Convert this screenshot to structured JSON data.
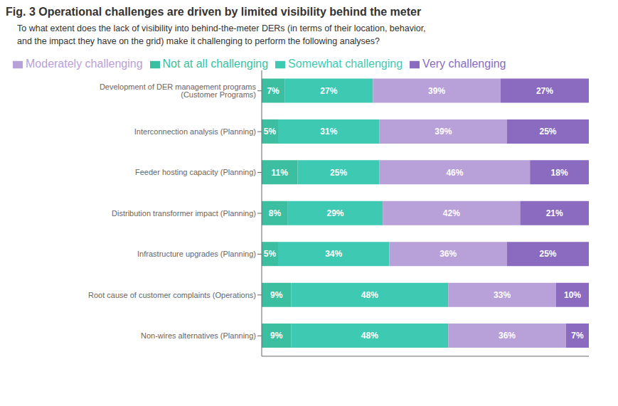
{
  "chart_data": {
    "type": "bar",
    "orientation": "horizontal",
    "stacked": true,
    "title": "Fig. 3  Operational challenges are driven by limited visibility behind the meter",
    "subtitle": "To what extent does the lack of visibility into behind-the-meter DERs (in terms of their location, behavior,\nand the impact they have on the grid) make it challenging to perform the following analyses?",
    "categories": [
      "Development of DER management programs (Customer Programs)",
      "Interconnection analysis (Planning)",
      "Feeder hosting capacity (Planning)",
      "Distribution transformer impact (Planning)",
      "Infrastructure upgrades (Planning)",
      "Root cause of customer complaints (Operations)",
      "Non-wires alternatives (Planning)"
    ],
    "series": [
      {
        "name": "Not at all challenging",
        "color": "#3bbfa0",
        "values": [
          7,
          5,
          11,
          8,
          5,
          9,
          9
        ],
        "value_labels": [
          "7%",
          "5%",
          "11%",
          "8%",
          "5%",
          "9%",
          "9%"
        ]
      },
      {
        "name": "Somewhat challenging",
        "color": "#3ec9b2",
        "values": [
          27,
          31,
          25,
          29,
          34,
          48,
          48
        ],
        "value_labels": [
          "27%",
          "31%",
          "25%",
          "29%",
          "34%",
          "48%",
          "48%"
        ]
      },
      {
        "name": "Moderately challenging",
        "color": "#b8a0d8",
        "values": [
          39,
          39,
          46,
          42,
          36,
          33,
          36
        ],
        "value_labels": [
          "39%",
          "39%",
          "46%",
          "42%",
          "36%",
          "33%",
          "36%"
        ]
      },
      {
        "name": "Very challenging",
        "color": "#8a6bbf",
        "values": [
          27,
          25,
          18,
          21,
          25,
          10,
          7
        ],
        "value_labels": [
          "27%",
          "25%",
          "18%",
          "21%",
          "25%",
          "10%",
          "7%"
        ]
      }
    ],
    "xlim": [
      0,
      100
    ],
    "data_labels": true,
    "tick_labels": "y",
    "legend": "top",
    "grid": false
  }
}
